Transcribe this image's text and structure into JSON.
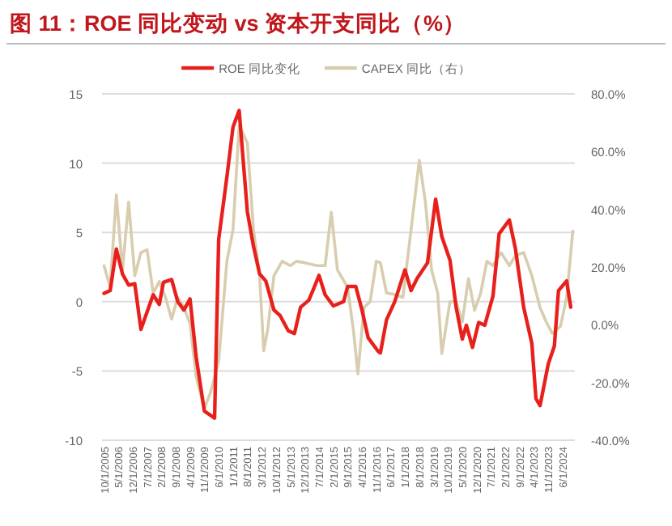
{
  "chart_data": {
    "type": "line",
    "title": "图 11：ROE 同比变动 vs 资本开支同比（%）",
    "legend": "top",
    "grid": "y",
    "xlim": [
      "2005-09",
      "2024-12"
    ],
    "xticks": [
      {
        "value": "2005-10",
        "label": "10/1/2005"
      },
      {
        "value": "2006-05",
        "label": "5/1/2006"
      },
      {
        "value": "2006-12",
        "label": "12/1/2006"
      },
      {
        "value": "2007-07",
        "label": "7/1/2007"
      },
      {
        "value": "2008-02",
        "label": "2/1/2008"
      },
      {
        "value": "2008-09",
        "label": "9/1/2008"
      },
      {
        "value": "2009-04",
        "label": "4/1/2009"
      },
      {
        "value": "2009-11",
        "label": "11/1/2009"
      },
      {
        "value": "2010-06",
        "label": "6/1/2010"
      },
      {
        "value": "2011-01",
        "label": "1/1/2011"
      },
      {
        "value": "2011-08",
        "label": "8/1/2011"
      },
      {
        "value": "2012-03",
        "label": "3/1/2012"
      },
      {
        "value": "2012-10",
        "label": "10/1/2012"
      },
      {
        "value": "2013-05",
        "label": "5/1/2013"
      },
      {
        "value": "2013-12",
        "label": "12/1/2013"
      },
      {
        "value": "2014-07",
        "label": "7/1/2014"
      },
      {
        "value": "2015-02",
        "label": "2/1/2015"
      },
      {
        "value": "2015-09",
        "label": "9/1/2015"
      },
      {
        "value": "2016-04",
        "label": "4/1/2016"
      },
      {
        "value": "2016-11",
        "label": "11/1/2016"
      },
      {
        "value": "2017-06",
        "label": "6/1/2017"
      },
      {
        "value": "2018-01",
        "label": "1/1/2018"
      },
      {
        "value": "2018-08",
        "label": "8/1/2018"
      },
      {
        "value": "2019-03",
        "label": "3/1/2019"
      },
      {
        "value": "2019-10",
        "label": "10/1/2019"
      },
      {
        "value": "2020-05",
        "label": "5/1/2020"
      },
      {
        "value": "2020-12",
        "label": "12/1/2020"
      },
      {
        "value": "2021-07",
        "label": "7/1/2021"
      },
      {
        "value": "2022-02",
        "label": "2/1/2022"
      },
      {
        "value": "2022-09",
        "label": "9/1/2022"
      },
      {
        "value": "2023-04",
        "label": "4/1/2023"
      },
      {
        "value": "2023-11",
        "label": "11/1/2023"
      },
      {
        "value": "2024-06",
        "label": "6/1/2024"
      }
    ],
    "ylim": [
      -10,
      15
    ],
    "yticks": [
      -10,
      -5,
      0,
      5,
      10,
      15
    ],
    "y2lim": [
      -40,
      80
    ],
    "y2ticks": [
      {
        "value": -40,
        "label": "-40.0%"
      },
      {
        "value": -20,
        "label": "-20.0%"
      },
      {
        "value": 0,
        "label": "0.0%"
      },
      {
        "value": 20,
        "label": "20.0%"
      },
      {
        "value": 40,
        "label": "40.0%"
      },
      {
        "value": 60,
        "label": "60.0%"
      },
      {
        "value": 80,
        "label": "80.0%"
      }
    ],
    "series": [
      {
        "name": "ROE 同比变化",
        "color": "#e8201c",
        "x": [
          "2005-10",
          "2006-01",
          "2006-04",
          "2006-07",
          "2006-10",
          "2007-01",
          "2007-04",
          "2007-10",
          "2008-01",
          "2008-03",
          "2008-07",
          "2008-10",
          "2009-01",
          "2009-04",
          "2009-07",
          "2009-11",
          "2010-04",
          "2010-06",
          "2010-10",
          "2011-01",
          "2011-04",
          "2011-08",
          "2011-11",
          "2012-02",
          "2012-05",
          "2012-09",
          "2012-12",
          "2013-04",
          "2013-07",
          "2013-10",
          "2014-02",
          "2014-04",
          "2014-07",
          "2014-10",
          "2015-02",
          "2015-07",
          "2015-09",
          "2016-01",
          "2016-04",
          "2016-07",
          "2016-12",
          "2017-01",
          "2017-04",
          "2017-08",
          "2018-01",
          "2018-04",
          "2018-07",
          "2018-12",
          "2019-04",
          "2019-07",
          "2019-11",
          "2020-02",
          "2020-05",
          "2020-07",
          "2020-10",
          "2021-01",
          "2021-04",
          "2021-08",
          "2021-11",
          "2022-04",
          "2022-07",
          "2022-11",
          "2023-03",
          "2023-05",
          "2023-07",
          "2023-11",
          "2024-02",
          "2024-04",
          "2024-08",
          "2024-10"
        ],
        "values": [
          0.6,
          0.8,
          3.8,
          2.0,
          1.2,
          1.3,
          -2.0,
          0.5,
          -0.2,
          1.4,
          1.6,
          0,
          -0.6,
          0.2,
          -4,
          -7.9,
          -8.4,
          4.5,
          9,
          12.6,
          13.8,
          6.5,
          4,
          2,
          1.5,
          -0.6,
          -1,
          -2.1,
          -2.3,
          -0.4,
          0.1,
          0.8,
          1.9,
          0.5,
          -0.3,
          0,
          1.1,
          1.1,
          -0.6,
          -2.6,
          -3.6,
          -3.7,
          -1.3,
          0,
          2.3,
          0.8,
          1.7,
          2.8,
          7.4,
          4.7,
          3.0,
          -0.4,
          -2.7,
          -1.7,
          -3.3,
          -1.5,
          -1.7,
          0.4,
          4.9,
          5.9,
          3.8,
          -0.4,
          -3.0,
          -7.0,
          -7.5,
          -4.5,
          -3.2,
          0.8,
          1.5,
          -0.4
        ]
      },
      {
        "name": "CAPEX 同比（右）",
        "color": "#d9cdb0",
        "axis": "y2",
        "x": [
          "2005-10",
          "2006-01",
          "2006-04",
          "2006-07",
          "2006-10",
          "2007-01",
          "2007-04",
          "2007-07",
          "2007-10",
          "2008-01",
          "2008-04",
          "2008-07",
          "2008-10",
          "2009-01",
          "2009-04",
          "2009-07",
          "2009-11",
          "2010-02",
          "2010-06",
          "2010-10",
          "2011-01",
          "2011-04",
          "2011-08",
          "2011-11",
          "2012-02",
          "2012-04",
          "2012-06",
          "2012-09",
          "2013-01",
          "2013-05",
          "2013-08",
          "2013-12",
          "2014-06",
          "2014-10",
          "2015-01",
          "2015-04",
          "2015-09",
          "2015-12",
          "2016-02",
          "2016-05",
          "2016-08",
          "2016-11",
          "2017-01",
          "2017-04",
          "2017-08",
          "2017-12",
          "2018-04",
          "2018-08",
          "2018-11",
          "2019-02",
          "2019-05",
          "2019-07",
          "2019-11",
          "2020-02",
          "2020-05",
          "2020-08",
          "2020-11",
          "2021-02",
          "2021-05",
          "2021-08",
          "2021-12",
          "2022-04",
          "2022-07",
          "2022-11",
          "2023-03",
          "2023-07",
          "2023-10",
          "2024-01",
          "2024-05",
          "2024-08",
          "2024-11"
        ],
        "values": [
          20.5,
          13,
          45,
          19,
          42.5,
          17,
          25,
          26,
          11,
          15,
          9.5,
          2,
          9.5,
          6,
          0.4,
          -18,
          -29,
          -23.5,
          -12.5,
          22,
          33,
          69,
          63,
          33,
          17,
          -9,
          -1.5,
          17,
          22,
          20.5,
          22,
          21.5,
          20.5,
          20.5,
          39,
          19,
          13,
          -3,
          -17,
          6,
          8,
          22,
          21.5,
          11,
          10.5,
          9.5,
          33,
          57,
          42.5,
          19,
          11,
          -10,
          8,
          8,
          1,
          16,
          5,
          11,
          22,
          20.5,
          25,
          20.5,
          24,
          25,
          17,
          6,
          1,
          -3,
          -0.5,
          9.5,
          32.5
        ]
      }
    ]
  }
}
